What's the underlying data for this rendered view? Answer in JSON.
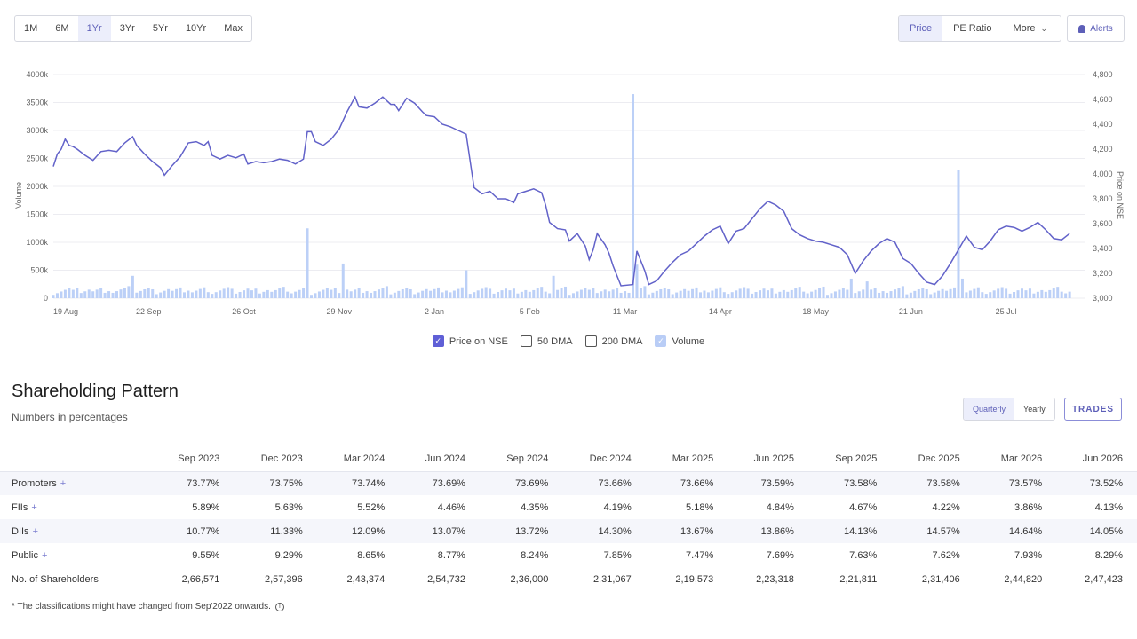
{
  "ranges": [
    "1M",
    "6M",
    "1Yr",
    "3Yr",
    "5Yr",
    "10Yr",
    "Max"
  ],
  "metrics": {
    "price": "Price",
    "pe": "PE Ratio",
    "more": "More",
    "alerts": "Alerts"
  },
  "chart_data": {
    "type": "line",
    "x_ticks": [
      "19 Aug",
      "22 Sep",
      "26 Oct",
      "29 Nov",
      "2 Jan",
      "5 Feb",
      "11 Mar",
      "14 Apr",
      "18 May",
      "21 Jun",
      "25 Jul"
    ],
    "y_left_ticks": [
      "0",
      "500k",
      "1000k",
      "1500k",
      "2000k",
      "2500k",
      "3000k",
      "3500k",
      "4000k"
    ],
    "y_right_ticks": [
      "3,000",
      "3,200",
      "3,400",
      "3,600",
      "3,800",
      "4,000",
      "4,200",
      "4,400",
      "4,600",
      "4,800"
    ],
    "ylabel_left": "Volume",
    "ylabel_right": "Price on NSE",
    "ylim_left": [
      0,
      4000000
    ],
    "ylim_right": [
      3000,
      4800
    ],
    "grid": true,
    "price_series": [
      [
        0,
        4060
      ],
      [
        0.1,
        4160
      ],
      [
        0.2,
        4200
      ],
      [
        0.3,
        4280
      ],
      [
        0.4,
        4230
      ],
      [
        0.5,
        4220
      ],
      [
        0.6,
        4200
      ],
      [
        0.8,
        4150
      ],
      [
        1,
        4110
      ],
      [
        1.2,
        4180
      ],
      [
        1.4,
        4190
      ],
      [
        1.6,
        4180
      ],
      [
        1.8,
        4250
      ],
      [
        2,
        4300
      ],
      [
        2.1,
        4230
      ],
      [
        2.3,
        4160
      ],
      [
        2.5,
        4100
      ],
      [
        2.7,
        4050
      ],
      [
        2.8,
        3990
      ],
      [
        3,
        4070
      ],
      [
        3.2,
        4140
      ],
      [
        3.4,
        4250
      ],
      [
        3.6,
        4260
      ],
      [
        3.8,
        4230
      ],
      [
        3.9,
        4260
      ],
      [
        4,
        4150
      ],
      [
        4.2,
        4120
      ],
      [
        4.4,
        4150
      ],
      [
        4.6,
        4130
      ],
      [
        4.8,
        4160
      ],
      [
        4.9,
        4080
      ],
      [
        5.1,
        4100
      ],
      [
        5.3,
        4090
      ],
      [
        5.5,
        4100
      ],
      [
        5.7,
        4120
      ],
      [
        5.9,
        4110
      ],
      [
        6.1,
        4080
      ],
      [
        6.3,
        4120
      ],
      [
        6.4,
        4340
      ],
      [
        6.5,
        4340
      ],
      [
        6.6,
        4260
      ],
      [
        6.8,
        4230
      ],
      [
        7,
        4280
      ],
      [
        7.2,
        4360
      ],
      [
        7.4,
        4500
      ],
      [
        7.6,
        4620
      ],
      [
        7.7,
        4540
      ],
      [
        7.9,
        4530
      ],
      [
        8.1,
        4570
      ],
      [
        8.3,
        4620
      ],
      [
        8.5,
        4560
      ],
      [
        8.6,
        4560
      ],
      [
        8.7,
        4510
      ],
      [
        8.9,
        4610
      ],
      [
        9.1,
        4570
      ],
      [
        9.3,
        4500
      ],
      [
        9.4,
        4470
      ],
      [
        9.6,
        4460
      ],
      [
        9.8,
        4400
      ],
      [
        10,
        4380
      ],
      [
        10.2,
        4350
      ],
      [
        10.4,
        4320
      ],
      [
        10.6,
        3890
      ],
      [
        10.8,
        3840
      ],
      [
        11,
        3860
      ],
      [
        11.2,
        3800
      ],
      [
        11.4,
        3800
      ],
      [
        11.6,
        3770
      ],
      [
        11.7,
        3840
      ],
      [
        11.9,
        3860
      ],
      [
        12.1,
        3880
      ],
      [
        12.3,
        3850
      ],
      [
        12.4,
        3750
      ],
      [
        12.5,
        3610
      ],
      [
        12.7,
        3560
      ],
      [
        12.9,
        3550
      ],
      [
        13,
        3460
      ],
      [
        13.2,
        3520
      ],
      [
        13.4,
        3420
      ],
      [
        13.5,
        3310
      ],
      [
        13.6,
        3390
      ],
      [
        13.7,
        3520
      ],
      [
        13.9,
        3430
      ],
      [
        14,
        3360
      ],
      [
        14.1,
        3260
      ],
      [
        14.3,
        3100
      ],
      [
        14.6,
        3110
      ],
      [
        14.7,
        3380
      ],
      [
        14.9,
        3220
      ],
      [
        15,
        3110
      ],
      [
        15.2,
        3140
      ],
      [
        15.4,
        3220
      ],
      [
        15.6,
        3290
      ],
      [
        15.8,
        3350
      ],
      [
        16,
        3380
      ],
      [
        16.2,
        3440
      ],
      [
        16.4,
        3500
      ],
      [
        16.6,
        3550
      ],
      [
        16.8,
        3580
      ],
      [
        17,
        3440
      ],
      [
        17.2,
        3540
      ],
      [
        17.4,
        3560
      ],
      [
        17.6,
        3640
      ],
      [
        17.8,
        3720
      ],
      [
        18,
        3780
      ],
      [
        18.2,
        3750
      ],
      [
        18.4,
        3700
      ],
      [
        18.6,
        3560
      ],
      [
        18.8,
        3510
      ],
      [
        19,
        3480
      ],
      [
        19.2,
        3460
      ],
      [
        19.4,
        3450
      ],
      [
        19.6,
        3430
      ],
      [
        19.8,
        3410
      ],
      [
        20,
        3350
      ],
      [
        20.2,
        3200
      ],
      [
        20.4,
        3300
      ],
      [
        20.6,
        3380
      ],
      [
        20.8,
        3440
      ],
      [
        21,
        3480
      ],
      [
        21.2,
        3450
      ],
      [
        21.4,
        3320
      ],
      [
        21.6,
        3280
      ],
      [
        21.8,
        3200
      ],
      [
        22,
        3130
      ],
      [
        22.2,
        3110
      ],
      [
        22.4,
        3180
      ],
      [
        22.6,
        3280
      ],
      [
        22.8,
        3390
      ],
      [
        23,
        3500
      ],
      [
        23.2,
        3410
      ],
      [
        23.4,
        3390
      ],
      [
        23.6,
        3460
      ],
      [
        23.8,
        3550
      ],
      [
        24,
        3580
      ],
      [
        24.2,
        3570
      ],
      [
        24.4,
        3540
      ],
      [
        24.6,
        3570
      ],
      [
        24.8,
        3610
      ],
      [
        25,
        3550
      ],
      [
        25.2,
        3480
      ],
      [
        25.4,
        3470
      ],
      [
        25.6,
        3520
      ]
    ],
    "volume_spikes": [
      [
        2.0,
        400000
      ],
      [
        6.4,
        1250000
      ],
      [
        7.3,
        620000
      ],
      [
        10.4,
        500000
      ],
      [
        12.6,
        400000
      ],
      [
        14.6,
        3650000
      ],
      [
        14.7,
        600000
      ],
      [
        20.1,
        350000
      ],
      [
        20.5,
        300000
      ],
      [
        22.8,
        2300000
      ],
      [
        22.9,
        350000
      ]
    ],
    "legend": [
      {
        "label": "Price on NSE",
        "checked": true,
        "color": "#5f5fd6"
      },
      {
        "label": "50 DMA",
        "checked": false,
        "color": "#555555"
      },
      {
        "label": "200 DMA",
        "checked": false,
        "color": "#555555"
      },
      {
        "label": "Volume",
        "checked": true,
        "color": "#b9cdf6"
      }
    ],
    "colors": {
      "price": "#6262c9",
      "volume": "#bcd0f7",
      "grid": "#ececf1"
    }
  },
  "shareholding": {
    "title": "Shareholding Pattern",
    "subtitle": "Numbers in percentages",
    "periods": [
      "Quarterly",
      "Yearly"
    ],
    "trades_label": "TRADES",
    "columns": [
      "Sep 2023",
      "Dec 2023",
      "Mar 2024",
      "Jun 2024",
      "Sep 2024",
      "Dec 2024",
      "Mar 2025",
      "Jun 2025",
      "Sep 2025",
      "Dec 2025",
      "Mar 2026",
      "Jun 2026"
    ],
    "rows": [
      {
        "label": "Promoters",
        "plus": "+",
        "values": [
          "73.77%",
          "73.75%",
          "73.74%",
          "73.69%",
          "73.69%",
          "73.66%",
          "73.66%",
          "73.59%",
          "73.58%",
          "73.58%",
          "73.57%",
          "73.52%"
        ]
      },
      {
        "label": "FIIs",
        "plus": "+",
        "values": [
          "5.89%",
          "5.63%",
          "5.52%",
          "4.46%",
          "4.35%",
          "4.19%",
          "5.18%",
          "4.84%",
          "4.67%",
          "4.22%",
          "3.86%",
          "4.13%"
        ]
      },
      {
        "label": "DIIs",
        "plus": "+",
        "values": [
          "10.77%",
          "11.33%",
          "12.09%",
          "13.07%",
          "13.72%",
          "14.30%",
          "13.67%",
          "13.86%",
          "14.13%",
          "14.57%",
          "14.64%",
          "14.05%"
        ]
      },
      {
        "label": "Public",
        "plus": "+",
        "values": [
          "9.55%",
          "9.29%",
          "8.65%",
          "8.77%",
          "8.24%",
          "7.85%",
          "7.47%",
          "7.69%",
          "7.63%",
          "7.62%",
          "7.93%",
          "8.29%"
        ]
      },
      {
        "label": "No. of Shareholders",
        "plus": "",
        "values": [
          "2,66,571",
          "2,57,396",
          "2,43,374",
          "2,54,732",
          "2,36,000",
          "2,31,067",
          "2,19,573",
          "2,23,318",
          "2,21,811",
          "2,31,406",
          "2,44,820",
          "2,47,423"
        ]
      }
    ],
    "footnote": "* The classifications might have changed from Sep'2022 onwards."
  }
}
